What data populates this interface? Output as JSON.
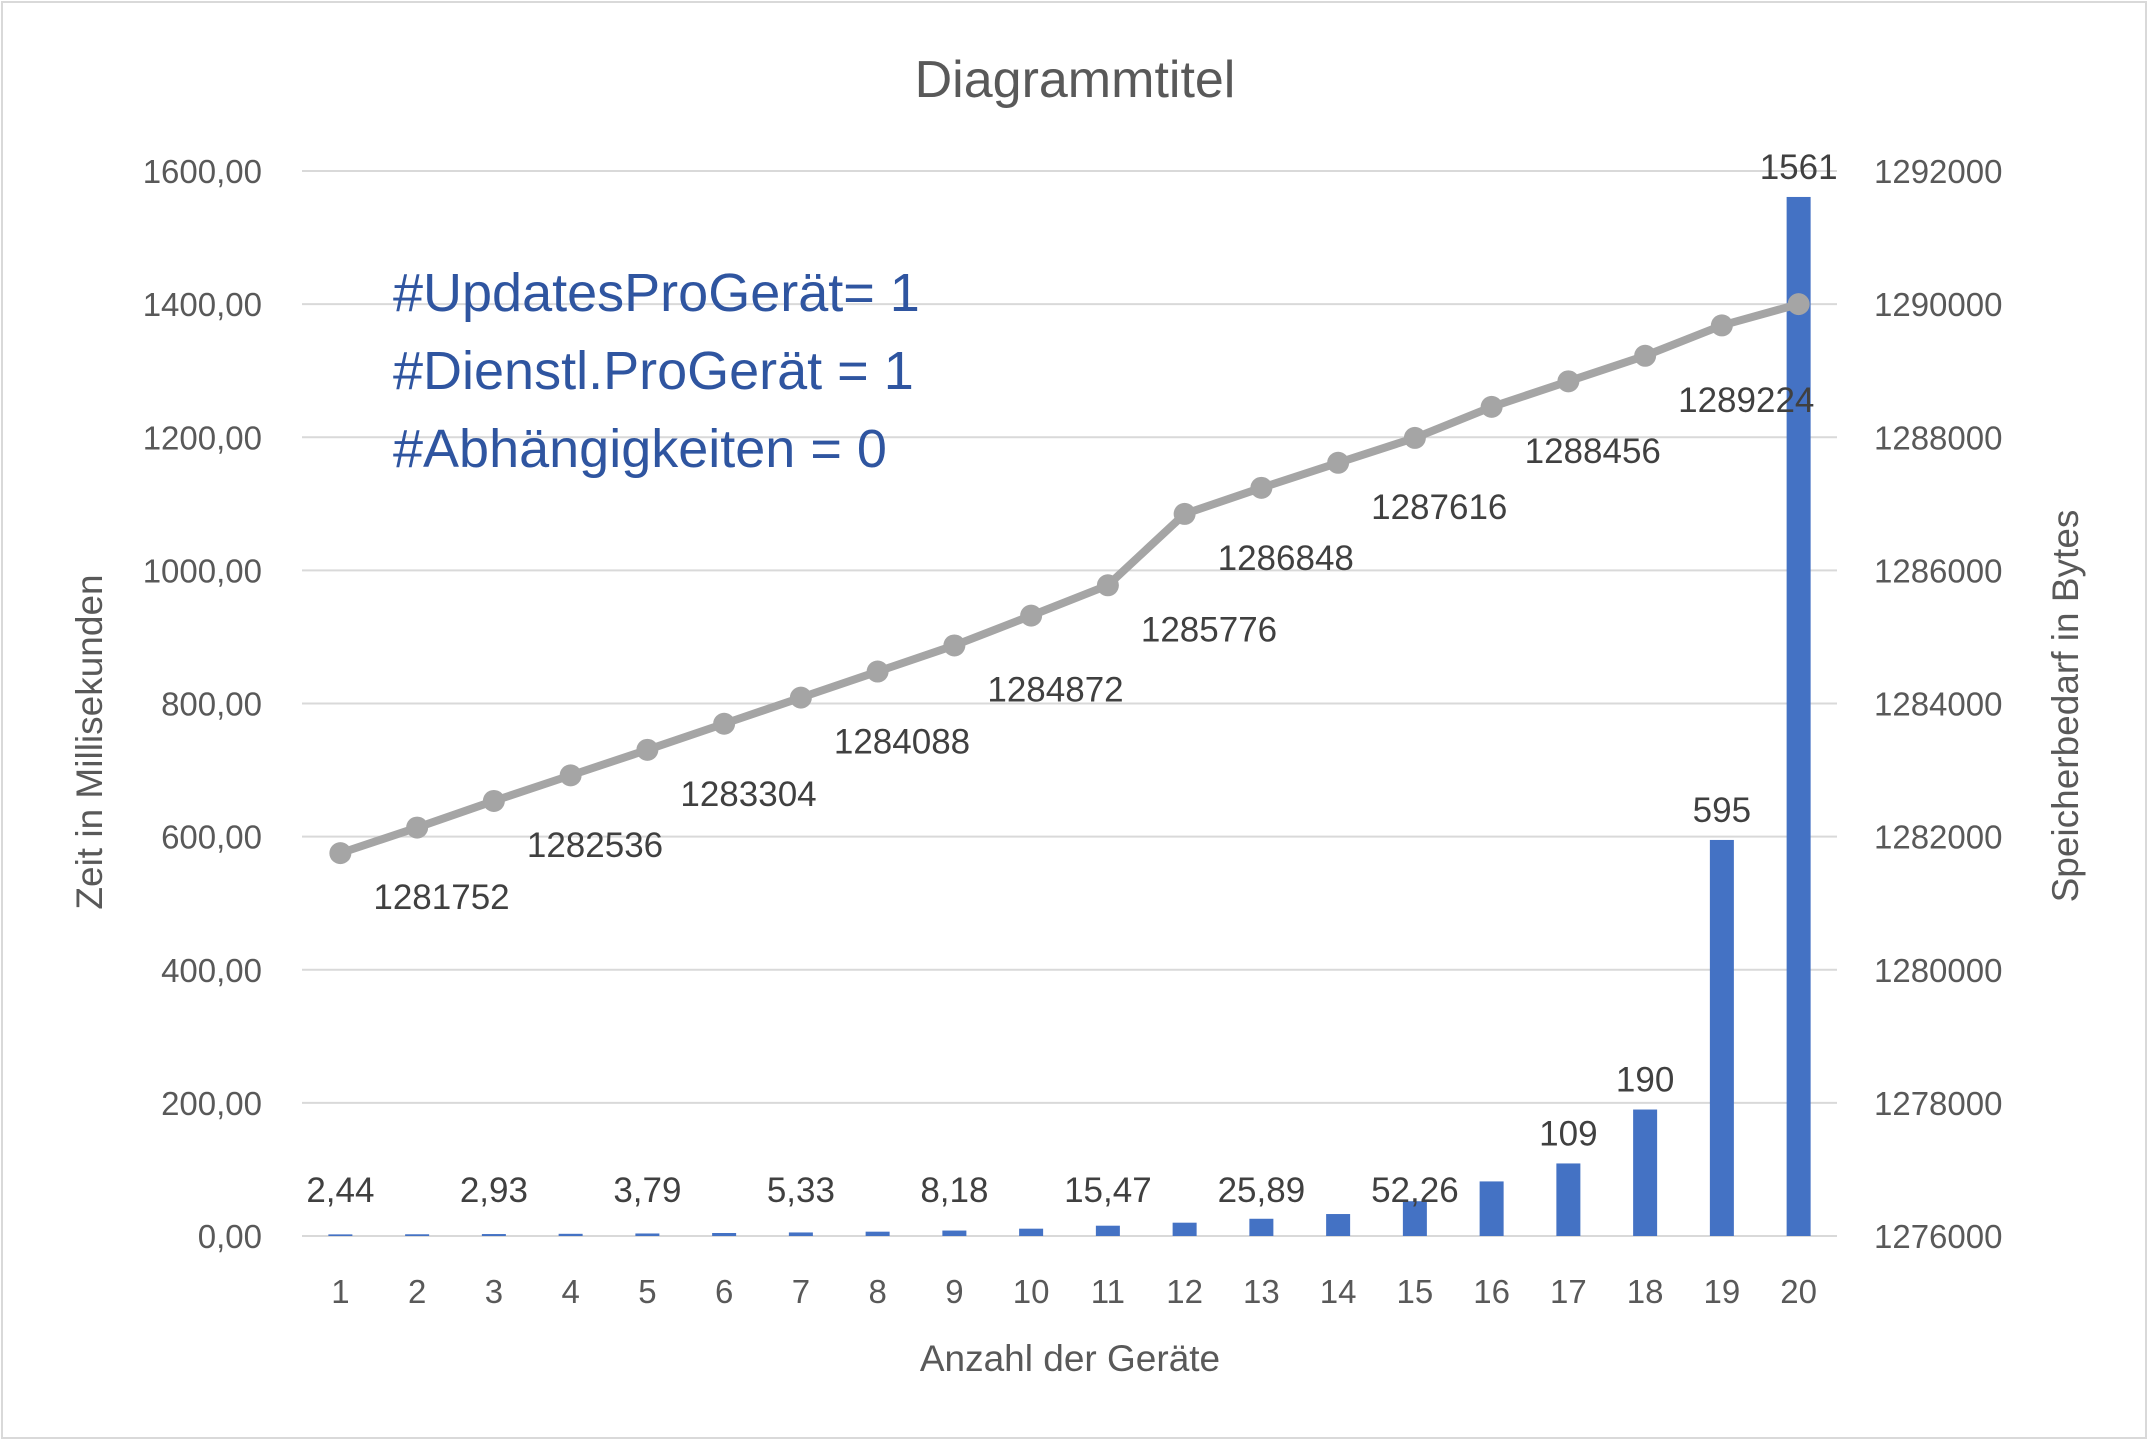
{
  "chart_data": {
    "type": "bar+line",
    "title": "Diagrammtitel",
    "xlabel": "Anzahl der Geräte",
    "ylabel_left": "Zeit in Millisekunden",
    "ylabel_right": "Speicherbedarf in Bytes",
    "categories": [
      "1",
      "2",
      "3",
      "4",
      "5",
      "6",
      "7",
      "8",
      "9",
      "10",
      "11",
      "12",
      "13",
      "14",
      "15",
      "16",
      "17",
      "18",
      "19",
      "20"
    ],
    "y_left_ticks": [
      "0,00",
      "200,00",
      "400,00",
      "600,00",
      "800,00",
      "1000,00",
      "1200,00",
      "1400,00",
      "1600,00"
    ],
    "y_right_ticks": [
      "1276000",
      "1278000",
      "1280000",
      "1282000",
      "1284000",
      "1286000",
      "1288000",
      "1290000",
      "1292000"
    ],
    "ylim_left": [
      0,
      1600
    ],
    "ylim_right": [
      1276000,
      1292000
    ],
    "grid": true,
    "legend": "none",
    "series": [
      {
        "type": "bar",
        "axis": "left",
        "color": "#4472c4",
        "values": [
          2.44,
          2.6,
          2.93,
          3.3,
          3.79,
          4.5,
          5.33,
          6.5,
          8.18,
          11.0,
          15.47,
          20.0,
          25.89,
          33.0,
          52.26,
          82.0,
          109,
          190,
          595,
          1561
        ],
        "data_labels": [
          "2,44",
          null,
          "2,93",
          null,
          "3,79",
          null,
          "5,33",
          null,
          "8,18",
          null,
          "15,47",
          null,
          "25,89",
          null,
          "52,26",
          null,
          "109",
          "190",
          "595",
          "1561"
        ]
      },
      {
        "type": "line",
        "axis": "right",
        "color": "#a5a5a5",
        "values": [
          1281752,
          1282136,
          1282536,
          1282920,
          1283304,
          1283696,
          1284088,
          1284480,
          1284872,
          1285320,
          1285776,
          1286848,
          1287240,
          1287616,
          1287990,
          1288456,
          1288840,
          1289224,
          1289680,
          1290000
        ],
        "data_labels": [
          "1281752",
          null,
          "1282536",
          null,
          "1283304",
          null,
          "1284088",
          null,
          "1284872",
          null,
          "1285776",
          "1286848",
          null,
          "1287616",
          null,
          "1288456",
          null,
          "1289224",
          null,
          null
        ]
      }
    ],
    "annotations": [
      "#UpdatesProGerät= 1",
      "#Dienstl.ProGerät = 1",
      "#Abhängigkeiten = 0"
    ]
  }
}
